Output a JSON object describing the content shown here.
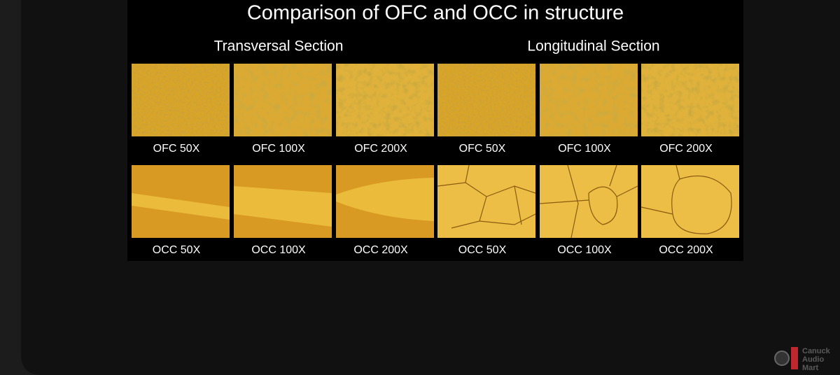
{
  "title": "Comparison of OFC and OCC in structure",
  "sections": [
    "Transversal Section",
    "Longitudinal Section"
  ],
  "rows": [
    {
      "labels": [
        "OFC 50X",
        "OFC 100X",
        "OFC 200X",
        "OFC 50X",
        "OFC 100X",
        "OFC 200X"
      ]
    },
    {
      "labels": [
        "OCC 50X",
        "OCC 100X",
        "OCC 200X",
        "OCC 50X",
        "OCC 100X",
        "OCC 200X"
      ]
    }
  ],
  "watermark": [
    "Canuck",
    "Audio",
    "Mart"
  ]
}
